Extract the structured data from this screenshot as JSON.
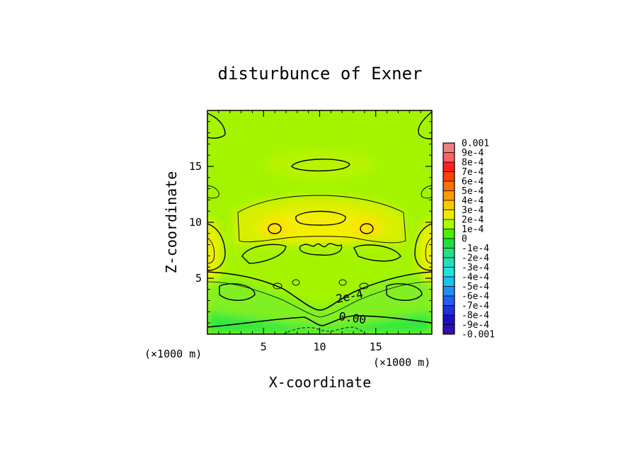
{
  "chart_data": {
    "type": "heatmap",
    "title": "disturbunce of Exner",
    "xlabel": "X-coordinate",
    "ylabel": "Z-coordinate",
    "x_unit_label": "(×1000 m)",
    "y_unit_label": "(×1000 m)",
    "xlim": [
      0,
      20
    ],
    "ylim": [
      0,
      20
    ],
    "xticks": [
      5,
      10,
      15
    ],
    "xtick_labels": [
      "5",
      "10",
      "15"
    ],
    "yticks": [
      5,
      10,
      15
    ],
    "ytick_labels": [
      "5",
      "10",
      "15"
    ],
    "colorbar": {
      "placement": "right",
      "labels": [
        "0.001",
        "9e-4",
        "8e-4",
        "7e-4",
        "6e-4",
        "5e-4",
        "4e-4",
        "3e-4",
        "2e-4",
        "1e-4",
        "0",
        "-1e-4",
        "-2e-4",
        "-3e-4",
        "-4e-4",
        "-5e-4",
        "-6e-4",
        "-7e-4",
        "-8e-4",
        "-9e-4",
        "-0.001"
      ],
      "colors": [
        "#f08080",
        "#ff6060",
        "#ff2020",
        "#ff4000",
        "#ff7000",
        "#ff9a00",
        "#ffc800",
        "#f0ec00",
        "#a8ff00",
        "#48f000",
        "#20e040",
        "#20e080",
        "#20e0b8",
        "#20e0e0",
        "#20c0f0",
        "#2090f0",
        "#2060f0",
        "#2030e0",
        "#1a10c8",
        "#3010b0",
        "#6010a8"
      ]
    },
    "field_colors": {
      "low": "#30e840",
      "mid": "#80f020",
      "base": "#a4f400",
      "high": "#d8f000",
      "peak": "#f4ee00"
    },
    "contour_labels": [
      "2e-4",
      "0.00"
    ]
  }
}
